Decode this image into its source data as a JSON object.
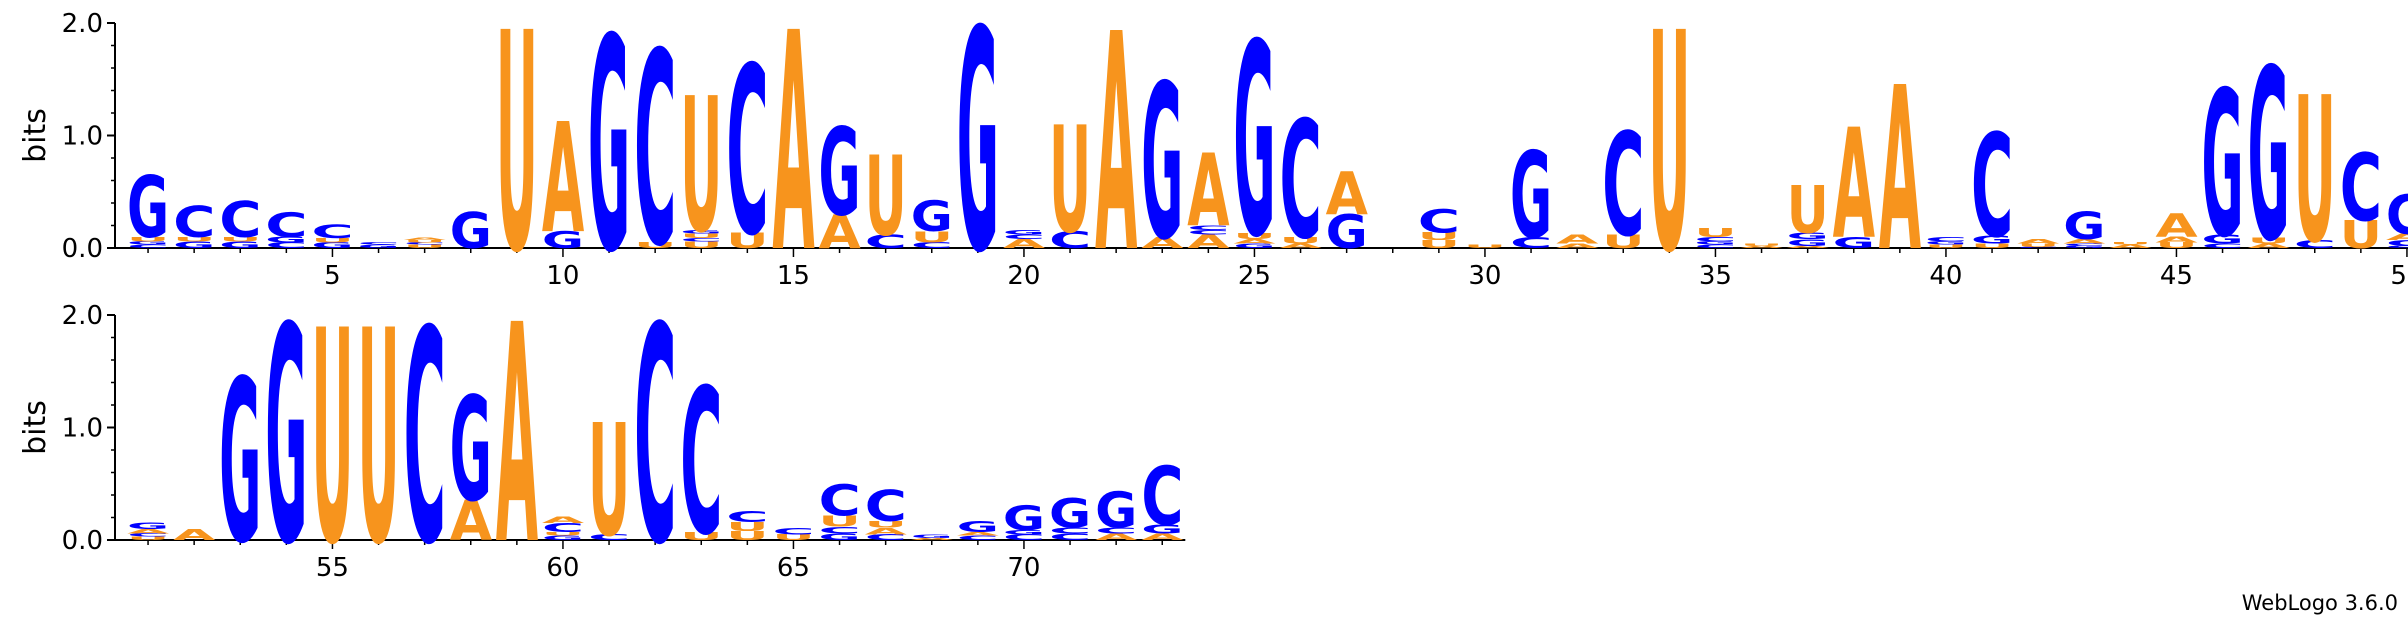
{
  "chart_data": {
    "type": "sequence-logo",
    "ylabel": "bits",
    "ylim": [
      0,
      2
    ],
    "y_ticks": [
      "0.0",
      "1.0",
      "2.0"
    ],
    "x_ticks_row1": [
      5,
      10,
      15,
      20,
      25,
      30,
      35,
      40,
      45,
      50
    ],
    "x_ticks_row2": [
      55,
      60,
      65,
      70
    ],
    "colors": {
      "A": "#f7941d",
      "U": "#f7941d",
      "G": "#0000ff",
      "C": "#0000ff"
    },
    "rows": [
      {
        "start": 1,
        "end": 50
      },
      {
        "start": 51,
        "end": 73
      }
    ],
    "positions": [
      {
        "pos": 1,
        "stack": [
          [
            "C",
            0.03
          ],
          [
            "G",
            0.03
          ],
          [
            "U",
            0.04
          ],
          [
            "G",
            0.55
          ]
        ]
      },
      {
        "pos": 2,
        "stack": [
          [
            "G",
            0.06
          ],
          [
            "U",
            0.04
          ],
          [
            "C",
            0.28
          ]
        ]
      },
      {
        "pos": 3,
        "stack": [
          [
            "G",
            0.06
          ],
          [
            "U",
            0.04
          ],
          [
            "C",
            0.32
          ]
        ]
      },
      {
        "pos": 4,
        "stack": [
          [
            "C",
            0.05
          ],
          [
            "G",
            0.05
          ],
          [
            "C",
            0.22
          ]
        ]
      },
      {
        "pos": 5,
        "stack": [
          [
            "G",
            0.05
          ],
          [
            "U",
            0.04
          ],
          [
            "C",
            0.12
          ]
        ]
      },
      {
        "pos": 6,
        "stack": [
          [
            "G",
            0.03
          ],
          [
            "C",
            0.02
          ]
        ]
      },
      {
        "pos": 7,
        "stack": [
          [
            "U",
            0.03
          ],
          [
            "C",
            0.02
          ],
          [
            "U",
            0.02
          ],
          [
            "A",
            0.02
          ]
        ]
      },
      {
        "pos": 8,
        "stack": [
          [
            "G",
            0.32
          ]
        ]
      },
      {
        "pos": 9,
        "stack": [
          [
            "U",
            1.95
          ]
        ]
      },
      {
        "pos": 10,
        "stack": [
          [
            "G",
            0.15
          ],
          [
            "A",
            0.98
          ]
        ]
      },
      {
        "pos": 11,
        "stack": [
          [
            "G",
            1.9
          ]
        ]
      },
      {
        "pos": 12,
        "stack": [
          [
            "U",
            0.05
          ],
          [
            "C",
            1.72
          ]
        ]
      },
      {
        "pos": 13,
        "stack": [
          [
            "U",
            0.06
          ],
          [
            "C",
            0.03
          ],
          [
            "U",
            0.04
          ],
          [
            "G",
            0.03
          ],
          [
            "U",
            1.2
          ]
        ]
      },
      {
        "pos": 14,
        "stack": [
          [
            "U",
            0.14
          ],
          [
            "C",
            1.5
          ]
        ]
      },
      {
        "pos": 15,
        "stack": [
          [
            "A",
            1.95
          ]
        ]
      },
      {
        "pos": 16,
        "stack": [
          [
            "A",
            0.3
          ],
          [
            "G",
            0.78
          ]
        ]
      },
      {
        "pos": 17,
        "stack": [
          [
            "C",
            0.12
          ],
          [
            "U",
            0.71
          ]
        ]
      },
      {
        "pos": 18,
        "stack": [
          [
            "C",
            0.05
          ],
          [
            "U",
            0.1
          ],
          [
            "G",
            0.27
          ]
        ]
      },
      {
        "pos": 19,
        "stack": [
          [
            "G",
            1.97
          ]
        ]
      },
      {
        "pos": 20,
        "stack": [
          [
            "A",
            0.08
          ],
          [
            "C",
            0.04
          ],
          [
            "G",
            0.04
          ]
        ]
      },
      {
        "pos": 21,
        "stack": [
          [
            "C",
            0.15
          ],
          [
            "U",
            0.95
          ]
        ]
      },
      {
        "pos": 22,
        "stack": [
          [
            "A",
            1.94
          ]
        ]
      },
      {
        "pos": 23,
        "stack": [
          [
            "A",
            0.1
          ],
          [
            "G",
            1.38
          ]
        ]
      },
      {
        "pos": 24,
        "stack": [
          [
            "A",
            0.12
          ],
          [
            "C",
            0.04
          ],
          [
            "C",
            0.04
          ],
          [
            "A",
            0.65
          ]
        ]
      },
      {
        "pos": 25,
        "stack": [
          [
            "G",
            0.04
          ],
          [
            "A",
            0.04
          ],
          [
            "U",
            0.05
          ],
          [
            "G",
            1.72
          ]
        ]
      },
      {
        "pos": 26,
        "stack": [
          [
            "A",
            0.04
          ],
          [
            "U",
            0.06
          ],
          [
            "C",
            1.05
          ]
        ]
      },
      {
        "pos": 27,
        "stack": [
          [
            "G",
            0.3
          ],
          [
            "A",
            0.38
          ]
        ]
      },
      {
        "pos": 28,
        "stack": []
      },
      {
        "pos": 29,
        "stack": [
          [
            "U",
            0.07
          ],
          [
            "U",
            0.07
          ],
          [
            "C",
            0.21
          ]
        ]
      },
      {
        "pos": 30,
        "stack": [
          [
            "U",
            0.03
          ]
        ]
      },
      {
        "pos": 31,
        "stack": [
          [
            "C",
            0.1
          ],
          [
            "G",
            0.77
          ]
        ]
      },
      {
        "pos": 32,
        "stack": [
          [
            "A",
            0.04
          ],
          [
            "A",
            0.08
          ]
        ]
      },
      {
        "pos": 33,
        "stack": [
          [
            "U",
            0.12
          ],
          [
            "C",
            0.92
          ]
        ]
      },
      {
        "pos": 34,
        "stack": [
          [
            "U",
            1.95
          ]
        ]
      },
      {
        "pos": 35,
        "stack": [
          [
            "C",
            0.03
          ],
          [
            "G",
            0.03
          ],
          [
            "C",
            0.04
          ],
          [
            "U",
            0.08
          ]
        ]
      },
      {
        "pos": 36,
        "stack": [
          [
            "A",
            0.02
          ],
          [
            "U",
            0.02
          ]
        ]
      },
      {
        "pos": 37,
        "stack": [
          [
            "A",
            0.02
          ],
          [
            "G",
            0.06
          ],
          [
            "G",
            0.06
          ],
          [
            "U",
            0.42
          ]
        ]
      },
      {
        "pos": 38,
        "stack": [
          [
            "G",
            0.1
          ],
          [
            "A",
            0.98
          ]
        ]
      },
      {
        "pos": 39,
        "stack": [
          [
            "A",
            1.46
          ]
        ]
      },
      {
        "pos": 40,
        "stack": [
          [
            "U",
            0.03
          ],
          [
            "G",
            0.03
          ],
          [
            "C",
            0.04
          ]
        ]
      },
      {
        "pos": 41,
        "stack": [
          [
            "U",
            0.04
          ],
          [
            "G",
            0.07
          ],
          [
            "C",
            0.92
          ]
        ]
      },
      {
        "pos": 42,
        "stack": [
          [
            "C",
            0.01
          ],
          [
            "U",
            0.03
          ],
          [
            "A",
            0.04
          ]
        ]
      },
      {
        "pos": 43,
        "stack": [
          [
            "G",
            0.02
          ],
          [
            "C",
            0.02
          ],
          [
            "A",
            0.04
          ],
          [
            "G",
            0.24
          ]
        ]
      },
      {
        "pos": 44,
        "stack": [
          [
            "A",
            0.03
          ],
          [
            "U",
            0.02
          ]
        ]
      },
      {
        "pos": 45,
        "stack": [
          [
            "U",
            0.05
          ],
          [
            "A",
            0.05
          ],
          [
            "A",
            0.21
          ]
        ]
      },
      {
        "pos": 46,
        "stack": [
          [
            "C",
            0.04
          ],
          [
            "G",
            0.08
          ],
          [
            "G",
            1.3
          ]
        ]
      },
      {
        "pos": 47,
        "stack": [
          [
            "A",
            0.04
          ],
          [
            "U",
            0.05
          ],
          [
            "G",
            1.53
          ]
        ]
      },
      {
        "pos": 48,
        "stack": [
          [
            "C",
            0.07
          ],
          [
            "U",
            1.3
          ]
        ]
      },
      {
        "pos": 49,
        "stack": [
          [
            "U",
            0.25
          ],
          [
            "C",
            0.6
          ]
        ]
      },
      {
        "pos": 50,
        "stack": [
          [
            "G",
            0.02
          ],
          [
            "C",
            0.05
          ],
          [
            "A",
            0.06
          ],
          [
            "G",
            0.35
          ]
        ]
      },
      {
        "pos": 51,
        "stack": [
          [
            "U",
            0.03
          ],
          [
            "C",
            0.03
          ],
          [
            "A",
            0.04
          ],
          [
            "G",
            0.06
          ]
        ]
      },
      {
        "pos": 52,
        "stack": [
          [
            "A",
            0.1
          ]
        ]
      },
      {
        "pos": 53,
        "stack": [
          [
            "G",
            1.45
          ]
        ]
      },
      {
        "pos": 54,
        "stack": [
          [
            "G",
            1.93
          ]
        ]
      },
      {
        "pos": 55,
        "stack": [
          [
            "U",
            1.9
          ]
        ]
      },
      {
        "pos": 56,
        "stack": [
          [
            "U",
            1.9
          ]
        ]
      },
      {
        "pos": 57,
        "stack": [
          [
            "C",
            1.9
          ]
        ]
      },
      {
        "pos": 58,
        "stack": [
          [
            "A",
            0.36
          ],
          [
            "G",
            0.93
          ]
        ]
      },
      {
        "pos": 59,
        "stack": [
          [
            "A",
            1.95
          ]
        ]
      },
      {
        "pos": 60,
        "stack": [
          [
            "G",
            0.04
          ],
          [
            "U",
            0.03
          ],
          [
            "C",
            0.08
          ],
          [
            "A",
            0.06
          ]
        ]
      },
      {
        "pos": 61,
        "stack": [
          [
            "C",
            0.05
          ],
          [
            "U",
            1.0
          ]
        ]
      },
      {
        "pos": 62,
        "stack": [
          [
            "C",
            1.93
          ]
        ]
      },
      {
        "pos": 63,
        "stack": [
          [
            "U",
            0.07
          ],
          [
            "C",
            1.3
          ]
        ]
      },
      {
        "pos": 64,
        "stack": [
          [
            "U",
            0.08
          ],
          [
            "U",
            0.08
          ],
          [
            "C",
            0.1
          ]
        ]
      },
      {
        "pos": 65,
        "stack": [
          [
            "U",
            0.05
          ],
          [
            "C",
            0.06
          ]
        ]
      },
      {
        "pos": 66,
        "stack": [
          [
            "G",
            0.06
          ],
          [
            "C",
            0.06
          ],
          [
            "U",
            0.1
          ],
          [
            "C",
            0.28
          ]
        ]
      },
      {
        "pos": 67,
        "stack": [
          [
            "C",
            0.05
          ],
          [
            "A",
            0.06
          ],
          [
            "U",
            0.06
          ],
          [
            "C",
            0.28
          ]
        ]
      },
      {
        "pos": 68,
        "stack": [
          [
            "A",
            0.02
          ],
          [
            "G",
            0.03
          ]
        ]
      },
      {
        "pos": 69,
        "stack": [
          [
            "C",
            0.04
          ],
          [
            "A",
            0.03
          ],
          [
            "G",
            0.1
          ]
        ]
      },
      {
        "pos": 70,
        "stack": [
          [
            "C",
            0.05
          ],
          [
            "G",
            0.04
          ],
          [
            "G",
            0.22
          ]
        ]
      },
      {
        "pos": 71,
        "stack": [
          [
            "C",
            0.06
          ],
          [
            "C",
            0.05
          ],
          [
            "G",
            0.26
          ]
        ]
      },
      {
        "pos": 72,
        "stack": [
          [
            "A",
            0.06
          ],
          [
            "C",
            0.05
          ],
          [
            "G",
            0.32
          ]
        ]
      },
      {
        "pos": 73,
        "stack": [
          [
            "A",
            0.06
          ],
          [
            "G",
            0.08
          ],
          [
            "C",
            0.52
          ]
        ]
      }
    ]
  },
  "credit": "WebLogo 3.6.0"
}
